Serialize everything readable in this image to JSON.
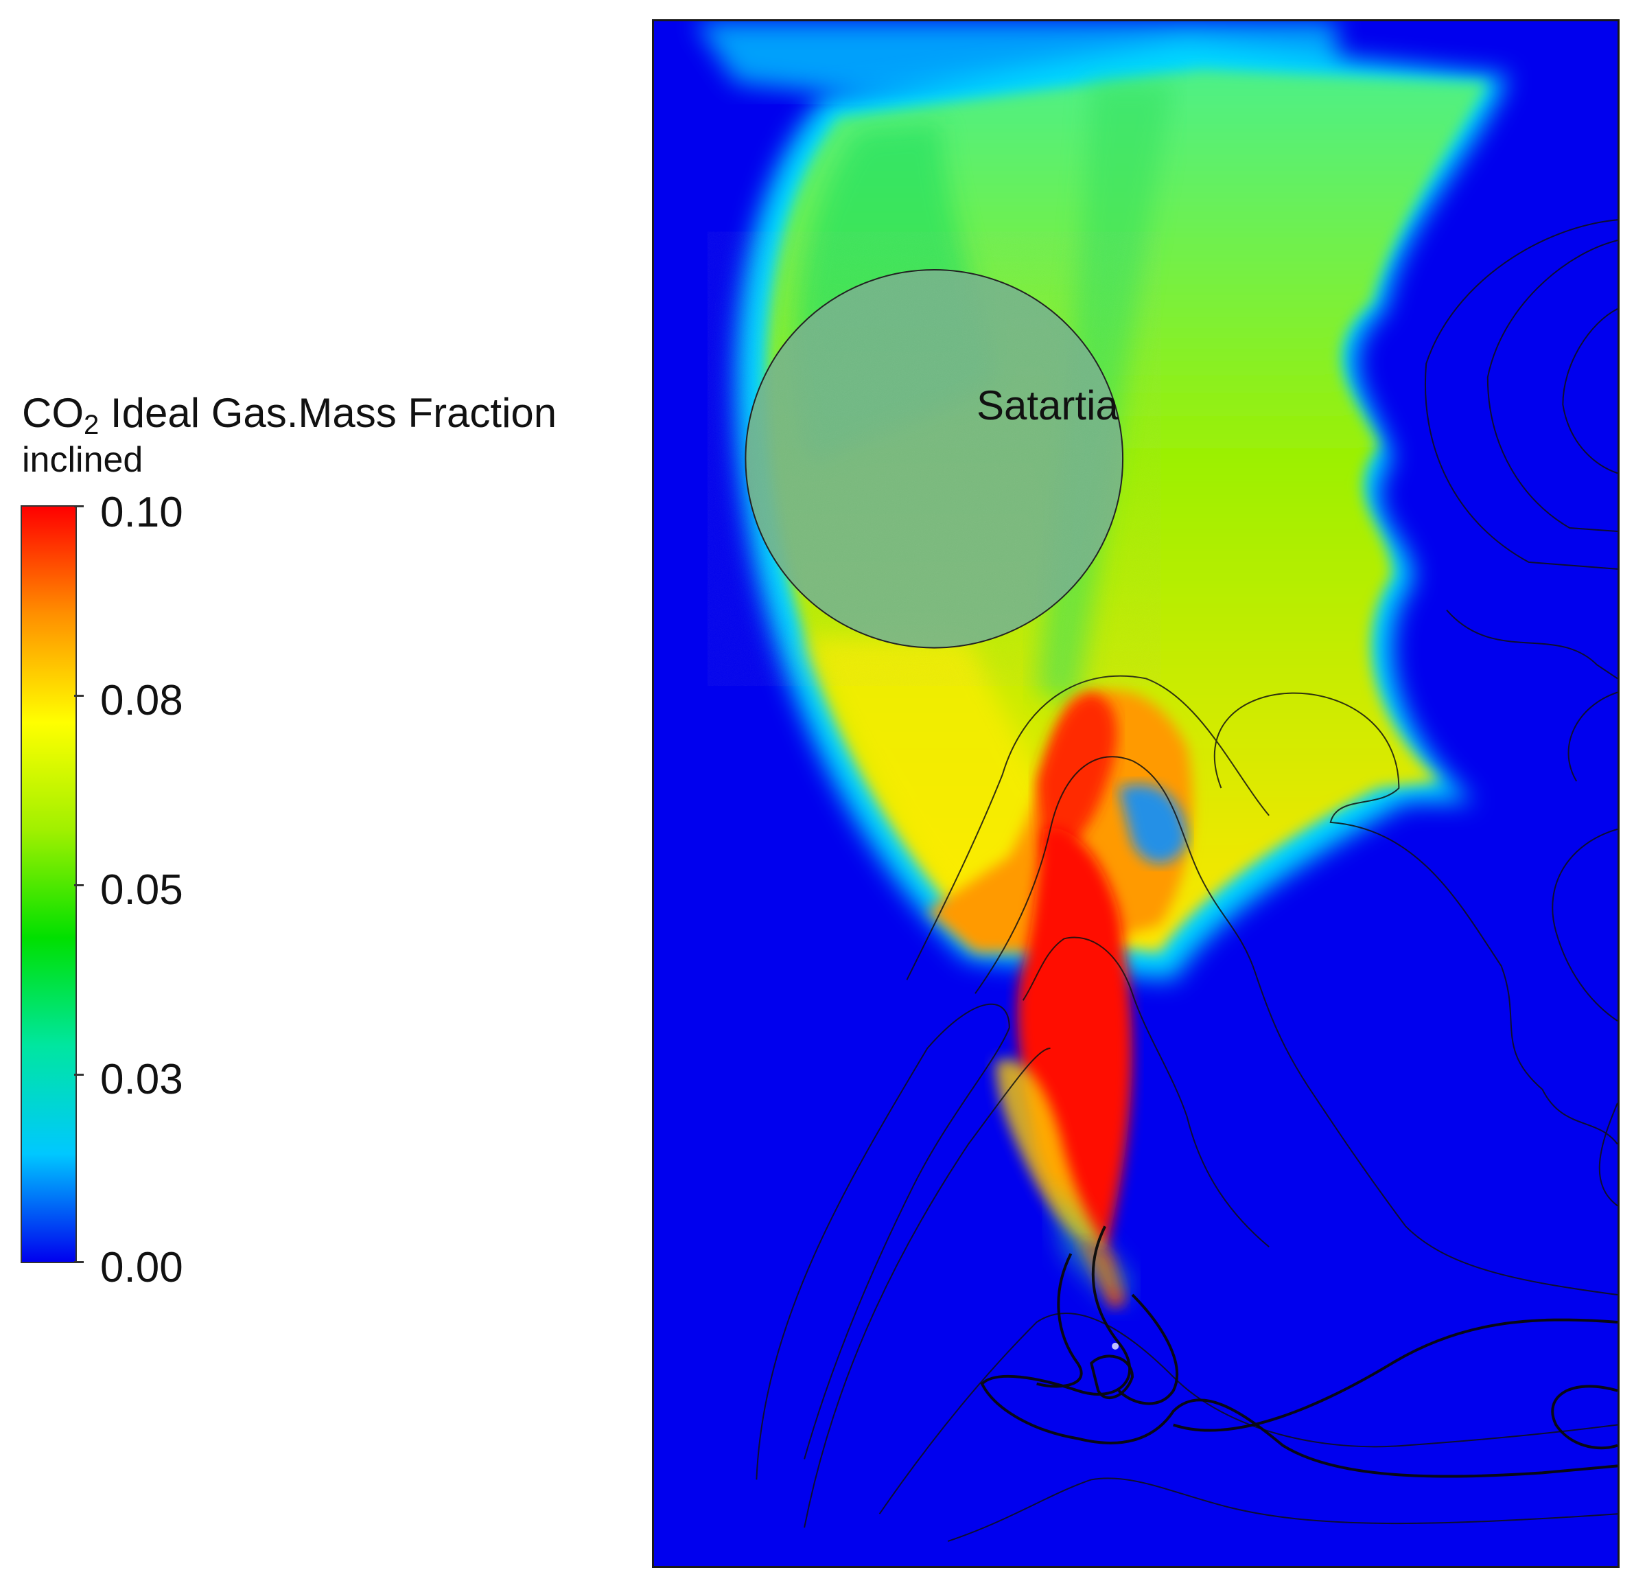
{
  "legend": {
    "title_main": "CO",
    "title_sub": "2",
    "title_rest": " Ideal Gas.Mass Fraction",
    "subtitle": "inclined",
    "ticks": [
      "0.10",
      "0.08",
      "0.05",
      "0.03",
      "0.00"
    ],
    "tick_values": [
      0.1,
      0.08,
      0.05,
      0.03,
      0.0
    ],
    "range": [
      0.0,
      0.1
    ],
    "colormap": [
      "#0000ee",
      "#00c8ff",
      "#00e6a0",
      "#00e000",
      "#a0f000",
      "#ffff00",
      "#ff9000",
      "#ff0000"
    ]
  },
  "map": {
    "place_label": "Satartia",
    "background_color": "#0000ee",
    "plume_colors": {
      "low": "#00e6a0",
      "mid": "#8ef000",
      "high": "#ffe800",
      "peak": "#ff1a00"
    }
  }
}
